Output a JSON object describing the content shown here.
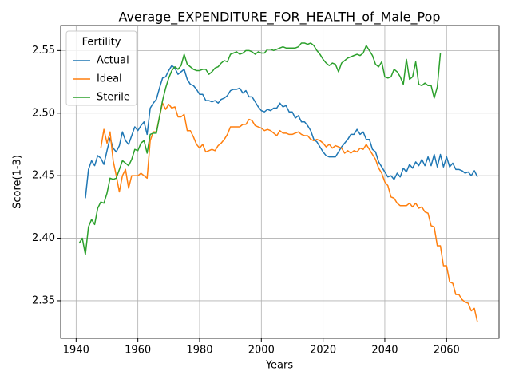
{
  "chart_data": {
    "type": "line",
    "title": "Average_EXPENDITURE_FOR_HEALTH_of_Male_Pop",
    "xlabel": "Years",
    "ylabel": "Score(1-3)",
    "xlim": [
      1935,
      2077
    ],
    "ylim": [
      2.32,
      2.57
    ],
    "xticks": [
      1940,
      1960,
      1980,
      2000,
      2020,
      2040,
      2060
    ],
    "yticks": [
      2.35,
      {
        "value": 2.4,
        "label": "2.40"
      },
      2.45,
      {
        "value": 2.5,
        "label": "2.50"
      },
      2.55
    ],
    "grid": true,
    "legend_title": "Fertility",
    "legend_loc": "upper left",
    "x": [
      1941,
      1942,
      1943,
      1944,
      1945,
      1946,
      1947,
      1948,
      1949,
      1950,
      1951,
      1952,
      1953,
      1954,
      1955,
      1956,
      1957,
      1958,
      1959,
      1960,
      1961,
      1962,
      1963,
      1964,
      1965,
      1966,
      1967,
      1968,
      1969,
      1970,
      1971,
      1972,
      1973,
      1974,
      1975,
      1976,
      1977,
      1978,
      1979,
      1980,
      1981,
      1982,
      1983,
      1984,
      1985,
      1986,
      1987,
      1988,
      1989,
      1990,
      1991,
      1992,
      1993,
      1994,
      1995,
      1996,
      1997,
      1998,
      1999,
      2000,
      2001,
      2002,
      2003,
      2004,
      2005,
      2006,
      2007,
      2008,
      2009,
      2010,
      2011,
      2012,
      2013,
      2014,
      2015,
      2016,
      2017,
      2018,
      2019,
      2020,
      2021,
      2022,
      2023,
      2024,
      2025,
      2026,
      2027,
      2028,
      2029,
      2030,
      2031,
      2032,
      2033,
      2034,
      2035,
      2036,
      2037,
      2038,
      2039,
      2040,
      2041,
      2042,
      2043,
      2044,
      2045,
      2046,
      2047,
      2048,
      2049,
      2050,
      2051,
      2052,
      2053,
      2054,
      2055,
      2056,
      2057,
      2058,
      2059,
      2060,
      2061,
      2062,
      2063,
      2064,
      2065,
      2066,
      2067,
      2068,
      2069,
      2070
    ],
    "series": [
      {
        "name": "Actual",
        "color": "#1f77b4",
        "values": [
          null,
          null,
          2.432,
          2.455,
          2.462,
          2.458,
          2.466,
          2.464,
          2.459,
          2.47,
          2.48,
          2.472,
          2.469,
          2.474,
          2.485,
          2.478,
          2.475,
          2.482,
          2.489,
          2.486,
          2.49,
          2.493,
          2.483,
          2.504,
          2.508,
          2.511,
          2.52,
          2.528,
          2.529,
          2.534,
          2.538,
          2.536,
          2.531,
          2.533,
          2.535,
          2.527,
          2.523,
          2.522,
          2.519,
          2.515,
          2.515,
          2.51,
          2.51,
          2.509,
          2.51,
          2.508,
          2.511,
          2.512,
          2.514,
          2.518,
          2.519,
          2.519,
          2.52,
          2.516,
          2.518,
          2.513,
          2.513,
          2.509,
          2.505,
          2.502,
          2.501,
          2.503,
          2.502,
          2.504,
          2.504,
          2.508,
          2.505,
          2.506,
          2.501,
          2.501,
          2.496,
          2.498,
          2.493,
          2.493,
          2.49,
          2.486,
          2.479,
          2.477,
          2.473,
          2.469,
          2.466,
          2.465,
          2.465,
          2.465,
          2.469,
          2.473,
          2.476,
          2.479,
          2.483,
          2.483,
          2.487,
          2.483,
          2.485,
          2.479,
          2.479,
          2.471,
          2.469,
          2.461,
          2.457,
          2.453,
          2.449,
          2.45,
          2.447,
          2.452,
          2.449,
          2.456,
          2.453,
          2.459,
          2.456,
          2.461,
          2.458,
          2.463,
          2.458,
          2.465,
          2.458,
          2.467,
          2.457,
          2.467,
          2.457,
          2.465,
          2.457,
          2.46,
          2.455,
          2.455,
          2.454,
          2.452,
          2.453,
          2.45,
          2.454,
          2.449
        ]
      },
      {
        "name": "Ideal",
        "color": "#ff7f0e",
        "values": [
          null,
          null,
          null,
          null,
          null,
          null,
          null,
          2.472,
          2.487,
          2.476,
          2.485,
          2.462,
          2.45,
          2.437,
          2.45,
          2.455,
          2.44,
          2.45,
          2.45,
          2.45,
          2.452,
          2.45,
          2.448,
          2.478,
          2.485,
          2.485,
          2.497,
          2.508,
          2.503,
          2.507,
          2.504,
          2.505,
          2.497,
          2.497,
          2.499,
          2.486,
          2.486,
          2.481,
          2.475,
          2.472,
          2.475,
          2.469,
          2.47,
          2.471,
          2.47,
          2.474,
          2.476,
          2.479,
          2.483,
          2.489,
          2.489,
          2.489,
          2.489,
          2.491,
          2.491,
          2.495,
          2.494,
          2.49,
          2.489,
          2.488,
          2.486,
          2.487,
          2.486,
          2.484,
          2.482,
          2.486,
          2.484,
          2.484,
          2.483,
          2.483,
          2.484,
          2.485,
          2.483,
          2.482,
          2.482,
          2.479,
          2.478,
          2.479,
          2.478,
          2.476,
          2.473,
          2.475,
          2.472,
          2.474,
          2.473,
          2.472,
          2.468,
          2.47,
          2.468,
          2.47,
          2.469,
          2.472,
          2.471,
          2.475,
          2.471,
          2.467,
          2.463,
          2.456,
          2.452,
          2.445,
          2.442,
          2.433,
          2.432,
          2.428,
          2.426,
          2.426,
          2.426,
          2.428,
          2.425,
          2.428,
          2.424,
          2.425,
          2.421,
          2.42,
          2.41,
          2.409,
          2.394,
          2.394,
          2.378,
          2.378,
          2.365,
          2.364,
          2.355,
          2.355,
          2.351,
          2.349,
          2.348,
          2.342,
          2.344,
          2.333
        ]
      },
      {
        "name": "Sterile",
        "color": "#2ca02c",
        "values": [
          2.396,
          2.4,
          2.387,
          2.409,
          2.415,
          2.411,
          2.424,
          2.429,
          2.428,
          2.436,
          2.448,
          2.447,
          2.448,
          2.455,
          2.462,
          2.46,
          2.458,
          2.463,
          2.471,
          2.47,
          2.476,
          2.478,
          2.468,
          2.483,
          2.484,
          2.484,
          2.497,
          2.51,
          2.52,
          2.528,
          2.534,
          2.537,
          2.535,
          2.538,
          2.547,
          2.539,
          2.537,
          2.535,
          2.534,
          2.534,
          2.535,
          2.535,
          2.531,
          2.533,
          2.536,
          2.537,
          2.54,
          2.542,
          2.541,
          2.547,
          2.548,
          2.549,
          2.547,
          2.548,
          2.55,
          2.55,
          2.549,
          2.547,
          2.549,
          2.548,
          2.548,
          2.551,
          2.551,
          2.55,
          2.551,
          2.552,
          2.553,
          2.552,
          2.552,
          2.552,
          2.552,
          2.553,
          2.556,
          2.556,
          2.555,
          2.556,
          2.554,
          2.55,
          2.547,
          2.543,
          2.54,
          2.538,
          2.54,
          2.539,
          2.533,
          2.54,
          2.542,
          2.544,
          2.545,
          2.546,
          2.547,
          2.546,
          2.548,
          2.554,
          2.55,
          2.546,
          2.539,
          2.537,
          2.541,
          2.529,
          2.528,
          2.529,
          2.535,
          2.533,
          2.529,
          2.523,
          2.543,
          2.527,
          2.529,
          2.541,
          2.523,
          2.522,
          2.524,
          2.522,
          2.522,
          2.512,
          2.521,
          2.548,
          null,
          null,
          null,
          null,
          null,
          null,
          null,
          null,
          null,
          null,
          null,
          null
        ]
      }
    ]
  }
}
